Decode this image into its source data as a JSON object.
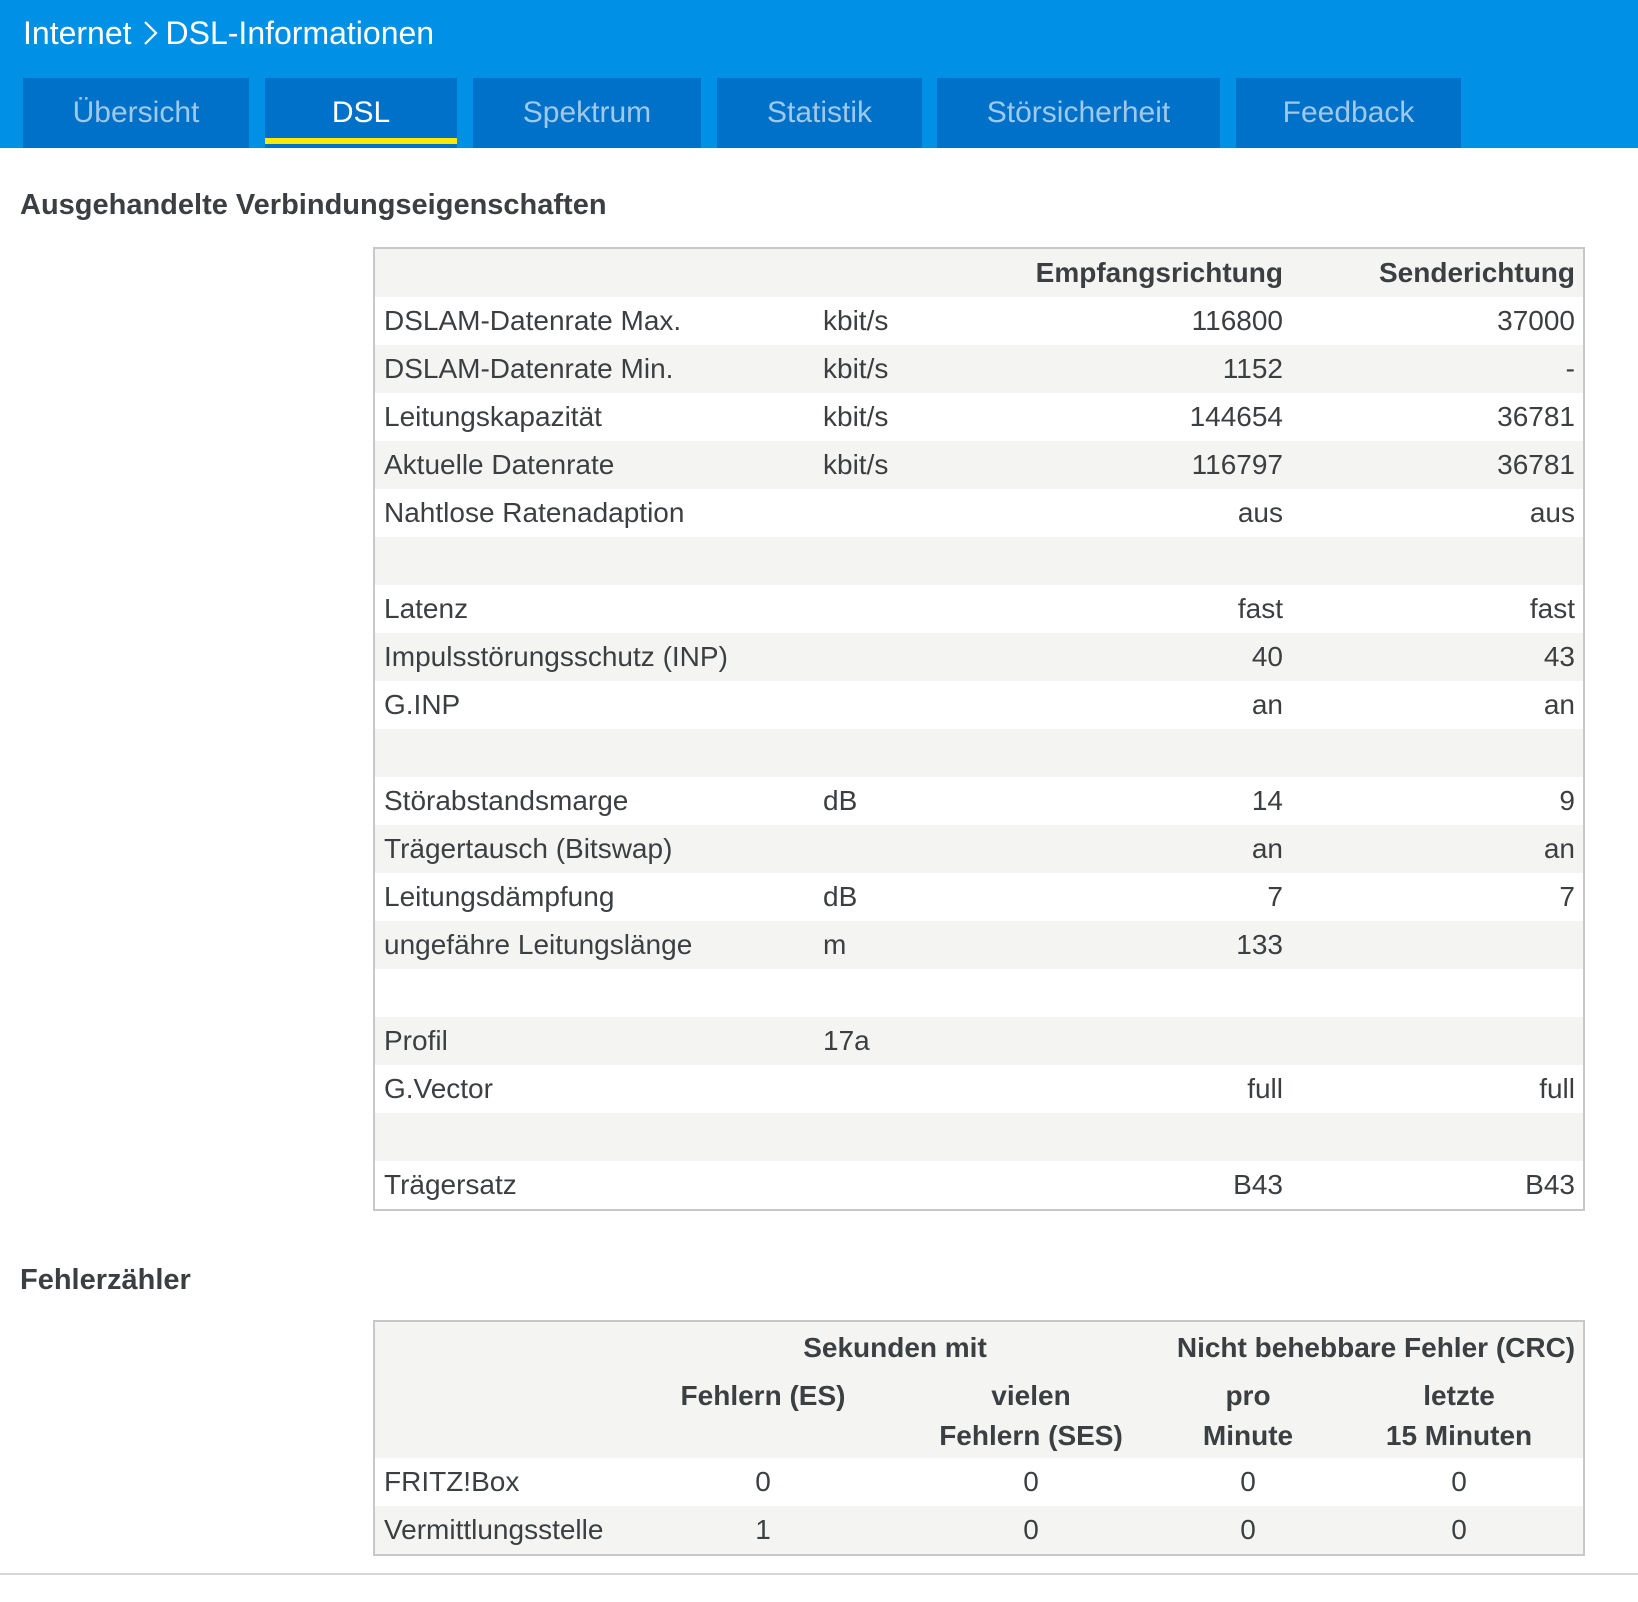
{
  "breadcrumb": {
    "parent": "Internet",
    "current": "DSL-Informationen",
    "separator_icon": "chevron-right-icon"
  },
  "tabs": [
    {
      "label": "Übersicht",
      "active": false
    },
    {
      "label": "DSL",
      "active": true
    },
    {
      "label": "Spektrum",
      "active": false
    },
    {
      "label": "Statistik",
      "active": false
    },
    {
      "label": "Störsicherheit",
      "active": false
    },
    {
      "label": "Feedback",
      "active": false
    }
  ],
  "colors": {
    "header_bg": "#0090e6",
    "tab_bg": "#0071c9",
    "tab_active_indicator": "#ffe700",
    "row_alt_bg": "#f4f4f2"
  },
  "connection": {
    "title": "Ausgehandelte Verbindungseigenschaften",
    "col_down": "Empfangsrichtung",
    "col_up": "Senderichtung",
    "rows": [
      {
        "label": "DSLAM-Datenrate Max.",
        "unit": "kbit/s",
        "down": "116800",
        "up": "37000"
      },
      {
        "label": "DSLAM-Datenrate Min.",
        "unit": "kbit/s",
        "down": "1152",
        "up": "-"
      },
      {
        "label": "Leitungskapazität",
        "unit": "kbit/s",
        "down": "144654",
        "up": "36781"
      },
      {
        "label": "Aktuelle Datenrate",
        "unit": "kbit/s",
        "down": "116797",
        "up": "36781"
      },
      {
        "label": "Nahtlose Ratenadaption",
        "unit": "",
        "down": "aus",
        "up": "aus"
      },
      {
        "label": "",
        "unit": "",
        "down": "",
        "up": ""
      },
      {
        "label": "Latenz",
        "unit": "",
        "down": "fast",
        "up": "fast"
      },
      {
        "label": "Impulsstörungsschutz (INP)",
        "unit": "",
        "down": "40",
        "up": "43"
      },
      {
        "label": "G.INP",
        "unit": "",
        "down": "an",
        "up": "an"
      },
      {
        "label": "",
        "unit": "",
        "down": "",
        "up": ""
      },
      {
        "label": "Störabstandsmarge",
        "unit": "dB",
        "down": "14",
        "up": "9"
      },
      {
        "label": "Trägertausch (Bitswap)",
        "unit": "",
        "down": "an",
        "up": "an"
      },
      {
        "label": "Leitungsdämpfung",
        "unit": "dB",
        "down": "7",
        "up": "7"
      },
      {
        "label": "ungefähre Leitungslänge",
        "unit": "m",
        "down": "133",
        "up": ""
      },
      {
        "label": "",
        "unit": "",
        "down": "",
        "up": ""
      },
      {
        "label": "Profil",
        "unit": "17a",
        "down": "",
        "up": ""
      },
      {
        "label": "G.Vector",
        "unit": "",
        "down": "full",
        "up": "full"
      },
      {
        "label": "",
        "unit": "",
        "down": "",
        "up": ""
      },
      {
        "label": "Trägersatz",
        "unit": "",
        "down": "B43",
        "up": "B43"
      }
    ]
  },
  "errors": {
    "title": "Fehlerzähler",
    "group_seconds": "Sekunden mit",
    "group_crc": "Nicht behebbare Fehler (CRC)",
    "col_es": "Fehlern (ES)",
    "col_ses_1": "vielen",
    "col_ses_2": "Fehlern (SES)",
    "col_min_1": "pro",
    "col_min_2": "Minute",
    "col_15_1": "letzte",
    "col_15_2": "15 Minuten",
    "rows": [
      {
        "label": "FRITZ!Box",
        "es": "0",
        "ses": "0",
        "per_min": "0",
        "last15": "0"
      },
      {
        "label": "Vermittlungsstelle",
        "es": "1",
        "ses": "0",
        "per_min": "0",
        "last15": "0"
      }
    ]
  }
}
